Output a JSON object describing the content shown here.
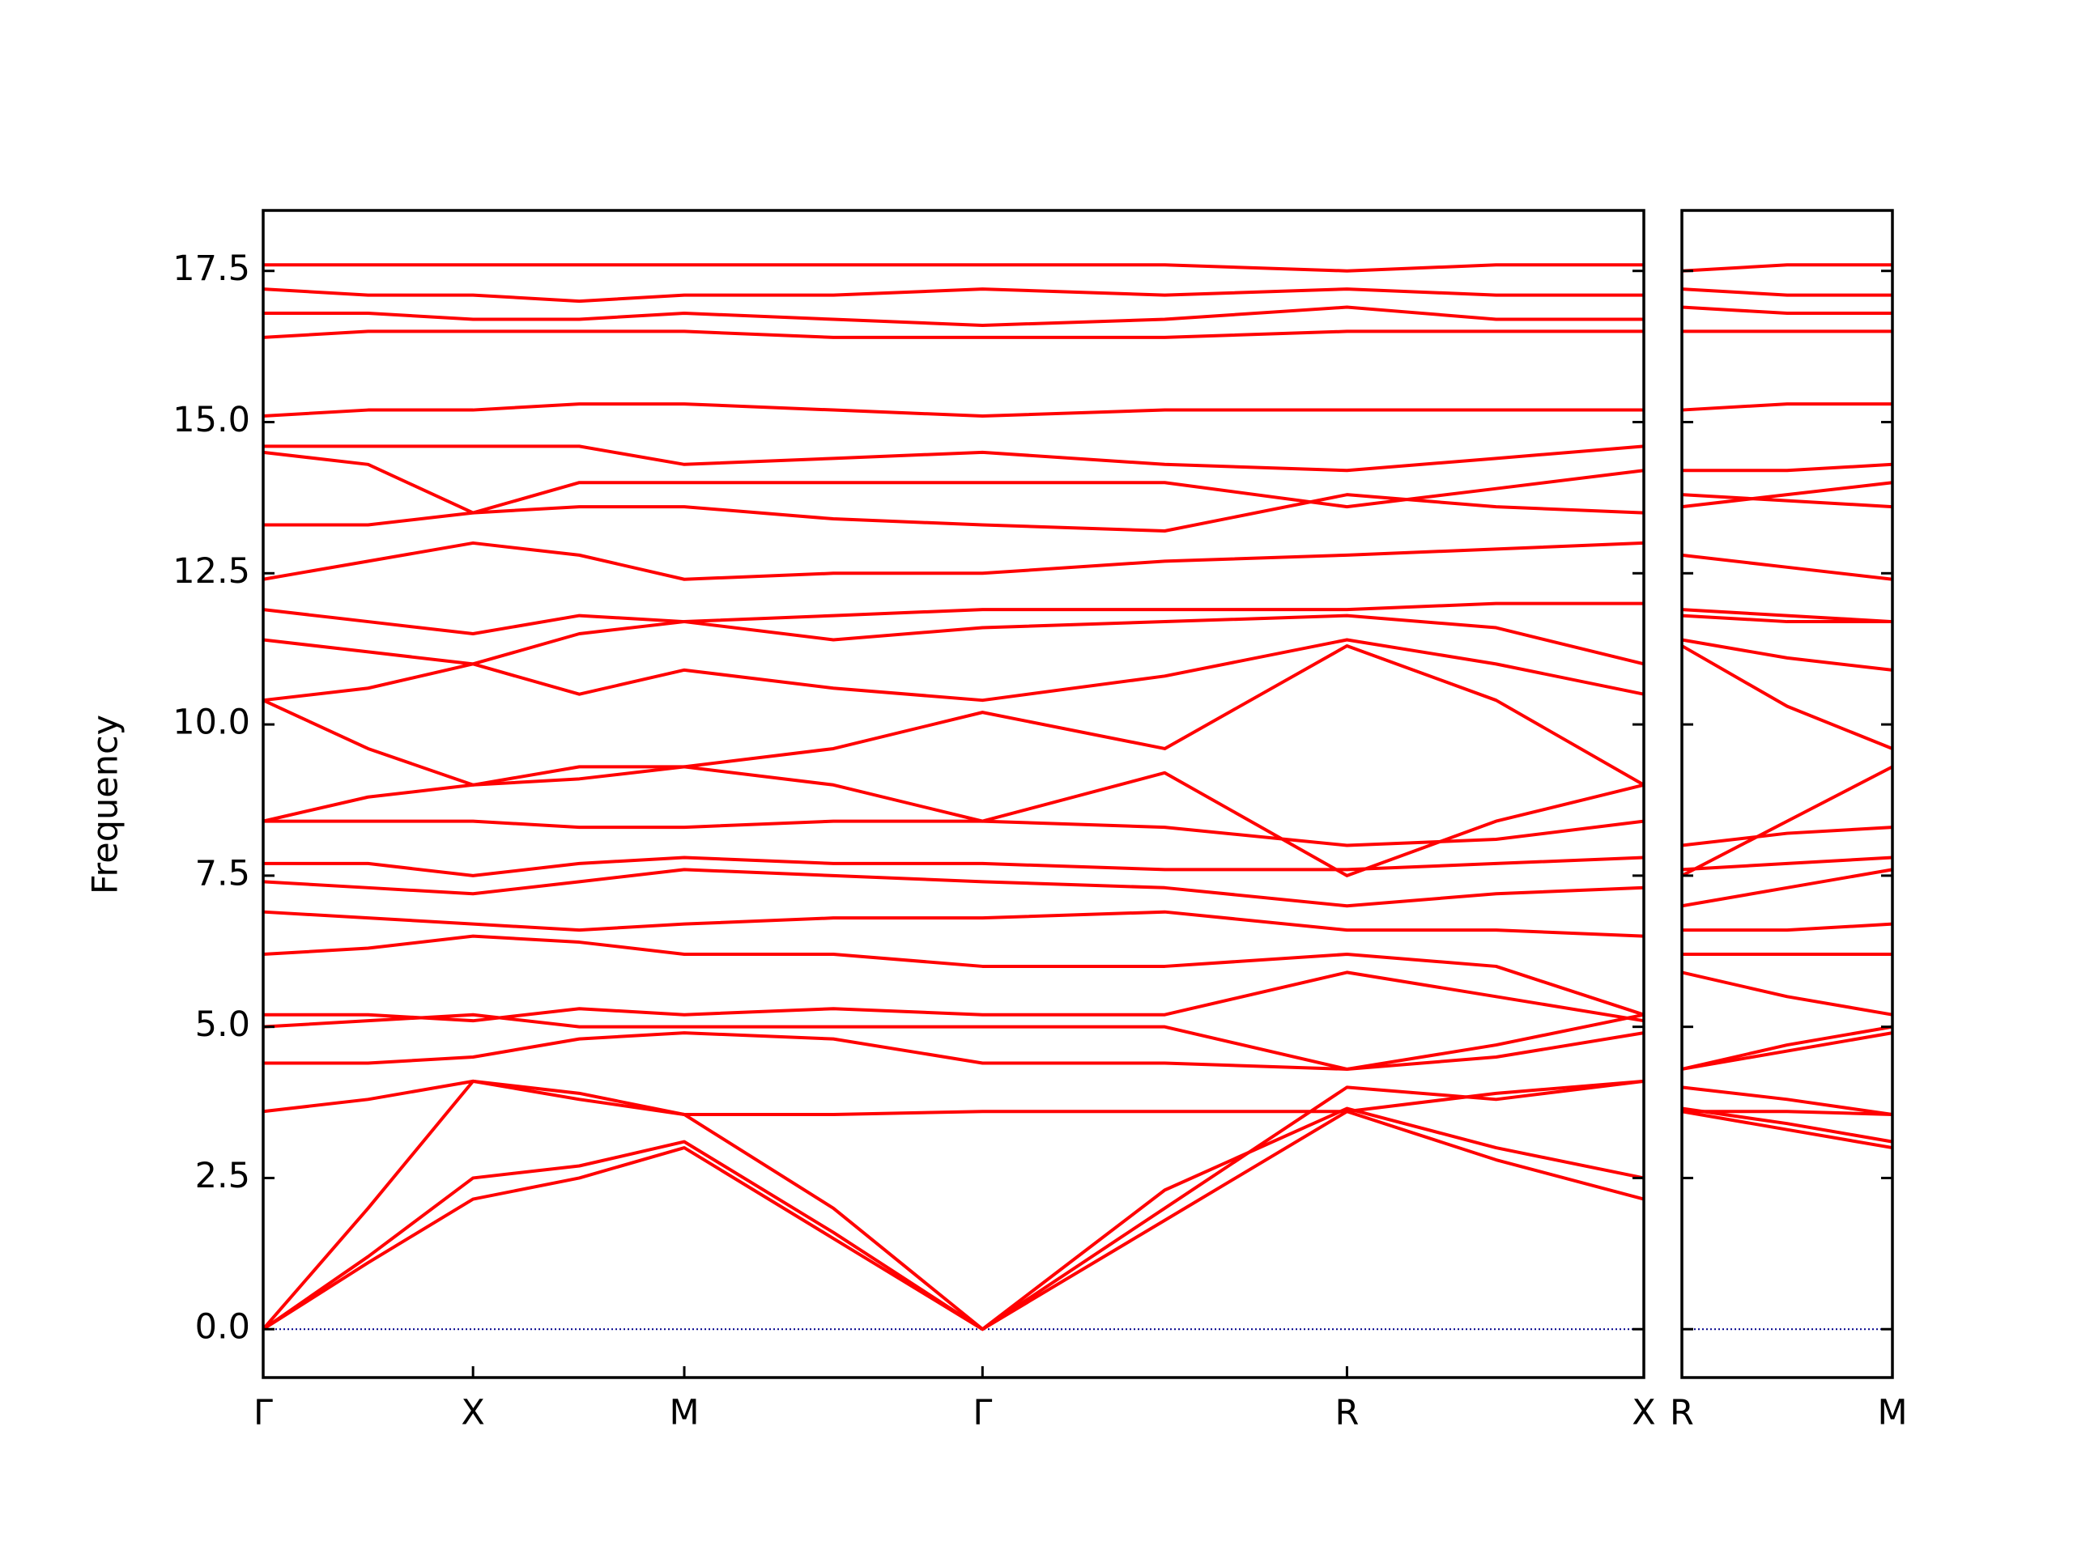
{
  "chart_data": [
    {
      "type": "line",
      "ylabel": "Frequency",
      "color": "#ff0000",
      "hline": 0,
      "hline_color": "#00008b",
      "xlim": [
        0,
        1
      ],
      "ylim": [
        -0.8,
        18.5
      ],
      "xticks": [
        {
          "value": 0,
          "label": "Γ"
        },
        {
          "value": 0.152,
          "label": "X"
        },
        {
          "value": 0.305,
          "label": "M"
        },
        {
          "value": 0.521,
          "label": "Γ"
        },
        {
          "value": 0.785,
          "label": "R"
        },
        {
          "value": 1,
          "label": "X"
        }
      ],
      "yticks": [
        {
          "value": 0,
          "label": "0.0"
        },
        {
          "value": 2.5,
          "label": "2.5"
        },
        {
          "value": 5,
          "label": "5.0"
        },
        {
          "value": 7.5,
          "label": "7.5"
        },
        {
          "value": 10,
          "label": "10.0"
        },
        {
          "value": 12.5,
          "label": "12.5"
        },
        {
          "value": 15,
          "label": "15.0"
        },
        {
          "value": 17.5,
          "label": "17.5"
        }
      ],
      "x": [
        0,
        0.076,
        0.152,
        0.229,
        0.305,
        0.413,
        0.521,
        0.653,
        0.785,
        0.893,
        1
      ],
      "series": [
        {
          "values": [
            0,
            1.1,
            2.15,
            2.5,
            3.0,
            1.5,
            0,
            1.8,
            3.6,
            2.8,
            2.15
          ]
        },
        {
          "values": [
            0,
            1.2,
            2.5,
            2.7,
            3.1,
            1.6,
            0,
            2.3,
            3.65,
            3.0,
            2.5
          ]
        },
        {
          "values": [
            0,
            2.0,
            4.1,
            3.8,
            3.55,
            2.0,
            0,
            2.0,
            4.0,
            3.8,
            4.1
          ]
        },
        {
          "values": [
            3.6,
            3.8,
            4.1,
            3.9,
            3.55,
            3.55,
            3.6,
            3.6,
            3.6,
            3.9,
            4.1
          ]
        },
        {
          "values": [
            4.4,
            4.4,
            4.5,
            4.8,
            4.9,
            4.8,
            4.4,
            4.4,
            4.3,
            4.5,
            4.9
          ]
        },
        {
          "values": [
            5.0,
            5.1,
            5.2,
            5.0,
            5.0,
            5.0,
            5.0,
            5.0,
            4.3,
            4.7,
            5.2
          ]
        },
        {
          "values": [
            5.2,
            5.2,
            5.1,
            5.3,
            5.2,
            5.3,
            5.2,
            5.2,
            5.9,
            5.5,
            5.1
          ]
        },
        {
          "values": [
            6.2,
            6.3,
            6.5,
            6.4,
            6.2,
            6.2,
            6.0,
            6.0,
            6.2,
            6.0,
            5.2
          ]
        },
        {
          "values": [
            6.9,
            6.8,
            6.7,
            6.6,
            6.7,
            6.8,
            6.8,
            6.9,
            6.6,
            6.6,
            6.5
          ]
        },
        {
          "values": [
            7.4,
            7.3,
            7.2,
            7.4,
            7.6,
            7.5,
            7.4,
            7.3,
            7.0,
            7.2,
            7.3
          ]
        },
        {
          "values": [
            7.7,
            7.7,
            7.5,
            7.7,
            7.8,
            7.7,
            7.7,
            7.6,
            7.6,
            7.7,
            7.8
          ]
        },
        {
          "values": [
            8.4,
            8.4,
            8.4,
            8.3,
            8.3,
            8.4,
            8.4,
            8.3,
            8.0,
            8.1,
            8.4
          ]
        },
        {
          "values": [
            8.4,
            8.8,
            9.0,
            9.1,
            9.3,
            9.0,
            8.4,
            9.2,
            7.5,
            8.4,
            9.0
          ]
        },
        {
          "values": [
            10.4,
            9.6,
            9.0,
            9.3,
            9.3,
            9.6,
            10.2,
            9.6,
            11.3,
            10.4,
            9.0
          ]
        },
        {
          "values": [
            10.4,
            10.6,
            11.0,
            10.5,
            10.9,
            10.6,
            10.4,
            10.8,
            11.4,
            11.0,
            10.5
          ]
        },
        {
          "values": [
            11.4,
            11.2,
            11.0,
            11.5,
            11.7,
            11.4,
            11.6,
            11.7,
            11.8,
            11.6,
            11.0
          ]
        },
        {
          "values": [
            11.9,
            11.7,
            11.5,
            11.8,
            11.7,
            11.8,
            11.9,
            11.9,
            11.9,
            12.0,
            12.0
          ]
        },
        {
          "values": [
            12.4,
            12.7,
            13.0,
            12.8,
            12.4,
            12.5,
            12.5,
            12.7,
            12.8,
            12.9,
            13.0
          ]
        },
        {
          "values": [
            13.3,
            13.3,
            13.5,
            13.6,
            13.6,
            13.4,
            13.3,
            13.2,
            13.8,
            13.6,
            13.5
          ]
        },
        {
          "values": [
            14.5,
            14.3,
            13.5,
            14.0,
            14.0,
            14.0,
            14.0,
            14.0,
            13.6,
            13.9,
            14.2
          ]
        },
        {
          "values": [
            14.6,
            14.6,
            14.6,
            14.6,
            14.3,
            14.4,
            14.5,
            14.3,
            14.2,
            14.4,
            14.6
          ]
        },
        {
          "values": [
            15.1,
            15.2,
            15.2,
            15.3,
            15.3,
            15.2,
            15.1,
            15.2,
            15.2,
            15.2,
            15.2
          ]
        },
        {
          "values": [
            16.4,
            16.5,
            16.5,
            16.5,
            16.5,
            16.4,
            16.4,
            16.4,
            16.5,
            16.5,
            16.5
          ]
        },
        {
          "values": [
            16.8,
            16.8,
            16.7,
            16.7,
            16.8,
            16.7,
            16.6,
            16.7,
            16.9,
            16.7,
            16.7
          ]
        },
        {
          "values": [
            17.2,
            17.1,
            17.1,
            17.0,
            17.1,
            17.1,
            17.2,
            17.1,
            17.2,
            17.1,
            17.1
          ]
        },
        {
          "values": [
            17.6,
            17.6,
            17.6,
            17.6,
            17.6,
            17.6,
            17.6,
            17.6,
            17.5,
            17.6,
            17.6
          ]
        }
      ]
    },
    {
      "type": "line",
      "color": "#ff0000",
      "hline": 0,
      "hline_color": "#00008b",
      "xlim": [
        0,
        0.152
      ],
      "ylim": [
        -0.8,
        18.5
      ],
      "xticks": [
        {
          "value": 0,
          "label": "R"
        },
        {
          "value": 0.152,
          "label": "M"
        }
      ],
      "yticks": [
        0,
        2.5,
        5,
        7.5,
        10,
        12.5,
        15,
        17.5
      ],
      "x": [
        0,
        0.076,
        0.152
      ],
      "series": [
        {
          "values": [
            3.6,
            3.3,
            3.0
          ]
        },
        {
          "values": [
            3.65,
            3.4,
            3.1
          ]
        },
        {
          "values": [
            4.0,
            3.8,
            3.55
          ]
        },
        {
          "values": [
            3.6,
            3.6,
            3.55
          ]
        },
        {
          "values": [
            4.3,
            4.6,
            4.9
          ]
        },
        {
          "values": [
            4.3,
            4.7,
            5.0
          ]
        },
        {
          "values": [
            5.9,
            5.5,
            5.2
          ]
        },
        {
          "values": [
            6.2,
            6.2,
            6.2
          ]
        },
        {
          "values": [
            6.6,
            6.6,
            6.7
          ]
        },
        {
          "values": [
            7.0,
            7.3,
            7.6
          ]
        },
        {
          "values": [
            7.6,
            7.7,
            7.8
          ]
        },
        {
          "values": [
            8.0,
            8.2,
            8.3
          ]
        },
        {
          "values": [
            7.5,
            8.4,
            9.3
          ]
        },
        {
          "values": [
            11.3,
            10.3,
            9.6
          ]
        },
        {
          "values": [
            11.4,
            11.1,
            10.9
          ]
        },
        {
          "values": [
            11.8,
            11.7,
            11.7
          ]
        },
        {
          "values": [
            11.9,
            11.8,
            11.7
          ]
        },
        {
          "values": [
            12.8,
            12.6,
            12.4
          ]
        },
        {
          "values": [
            13.8,
            13.7,
            13.6
          ]
        },
        {
          "values": [
            13.6,
            13.8,
            14.0
          ]
        },
        {
          "values": [
            14.2,
            14.2,
            14.3
          ]
        },
        {
          "values": [
            15.2,
            15.3,
            15.3
          ]
        },
        {
          "values": [
            16.5,
            16.5,
            16.5
          ]
        },
        {
          "values": [
            16.9,
            16.8,
            16.8
          ]
        },
        {
          "values": [
            17.2,
            17.1,
            17.1
          ]
        },
        {
          "values": [
            17.5,
            17.6,
            17.6
          ]
        }
      ]
    }
  ]
}
